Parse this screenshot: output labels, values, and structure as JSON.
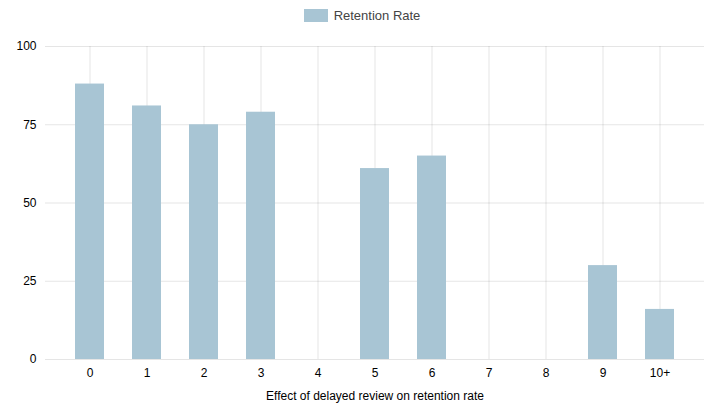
{
  "chart_data": {
    "type": "bar",
    "categories": [
      "0",
      "1",
      "2",
      "3",
      "4",
      "5",
      "6",
      "7",
      "8",
      "9",
      "10+"
    ],
    "series": [
      {
        "name": "Retention Rate",
        "color": "#a8c5d4",
        "values": [
          88,
          81,
          75,
          79,
          0,
          61,
          65,
          0,
          0,
          30,
          16
        ]
      }
    ],
    "xlabel": "Effect of delayed review on retention rate",
    "ylim": [
      0,
      100
    ],
    "yticks": [
      0,
      25,
      50,
      75,
      100
    ],
    "grid": true,
    "legend": "top"
  }
}
